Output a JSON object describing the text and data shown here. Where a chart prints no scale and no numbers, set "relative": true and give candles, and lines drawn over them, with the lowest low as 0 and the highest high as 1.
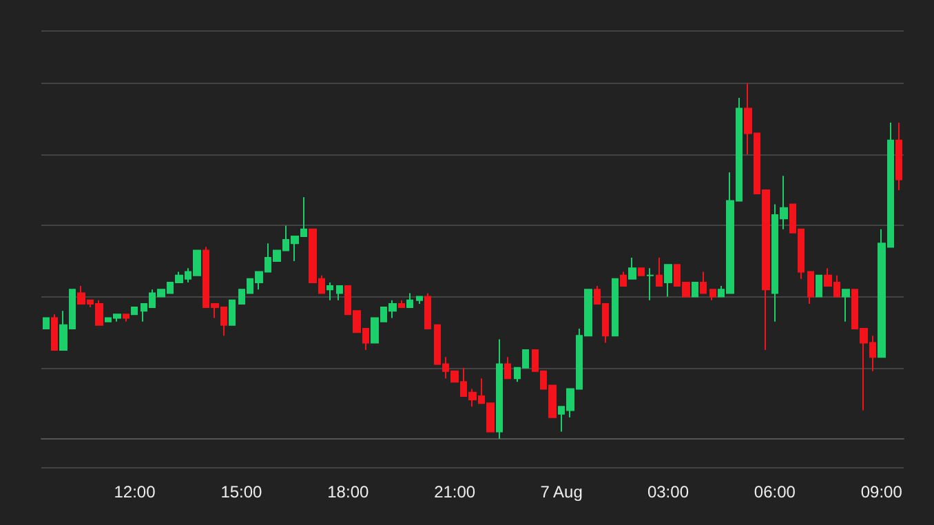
{
  "chart_data": {
    "type": "candlestick",
    "relative": true,
    "grid": "y",
    "categories": [
      null,
      null,
      null,
      null,
      null,
      null,
      null,
      null,
      null,
      null,
      "12:00",
      null,
      null,
      null,
      null,
      null,
      null,
      null,
      null,
      null,
      null,
      null,
      "15:00",
      null,
      null,
      null,
      null,
      null,
      null,
      null,
      null,
      null,
      null,
      null,
      "18:00",
      null,
      null,
      null,
      null,
      null,
      null,
      null,
      null,
      null,
      null,
      null,
      "21:00",
      null,
      null,
      null,
      null,
      null,
      null,
      null,
      null,
      null,
      null,
      null,
      "7 Aug",
      null,
      null,
      null,
      null,
      null,
      null,
      null,
      null,
      null,
      null,
      null,
      "03:00",
      null,
      null,
      null,
      null,
      null,
      null,
      null,
      null,
      null,
      null,
      null,
      "06:00",
      null,
      null,
      null,
      null,
      null,
      null,
      null,
      null,
      null,
      null,
      null,
      "09:00",
      null,
      null
    ],
    "series": [
      {
        "colors": [
          "#1ccf6b",
          "#f2141a",
          "#1ccf6b",
          "#1ccf6b",
          "#f2141a",
          "#f2141a",
          "#f2141a",
          "#1ccf6b",
          "#1ccf6b",
          "#f2141a",
          "#1ccf6b",
          "#1ccf6b",
          "#1ccf6b",
          "#1ccf6b",
          "#1ccf6b",
          "#1ccf6b",
          "#1ccf6b",
          "#1ccf6b",
          "#f2141a",
          "#f2141a",
          "#f2141a",
          "#1ccf6b",
          "#1ccf6b",
          "#1ccf6b",
          "#1ccf6b",
          "#1ccf6b",
          "#1ccf6b",
          "#1ccf6b",
          "#1ccf6b",
          "#1ccf6b",
          "#f2141a",
          "#f2141a",
          "#1ccf6b",
          "#1ccf6b",
          "#f2141a",
          "#f2141a",
          "#f2141a",
          "#1ccf6b",
          "#1ccf6b",
          "#1ccf6b",
          "#f2141a",
          "#1ccf6b",
          "#1ccf6b",
          "#f2141a",
          "#f2141a",
          "#f2141a",
          "#f2141a",
          "#f2141a",
          "#f2141a",
          "#f2141a",
          "#f2141a",
          "#1ccf6b",
          "#f2141a",
          "#1ccf6b",
          "#1ccf6b",
          "#f2141a",
          "#f2141a",
          "#f2141a",
          "#1ccf6b",
          "#1ccf6b",
          "#1ccf6b",
          "#1ccf6b",
          "#f2141a",
          "#f2141a",
          "#1ccf6b",
          "#f2141a",
          "#1ccf6b",
          "#f2141a",
          "#1ccf6b",
          "#f2141a",
          "#1ccf6b",
          "#f2141a",
          "#f2141a",
          "#1ccf6b",
          "#f2141a",
          "#f2141a",
          "#1ccf6b",
          "#1ccf6b",
          "#1ccf6b",
          "#f2141a",
          "#f2141a",
          "#f2141a",
          "#1ccf6b",
          "#1ccf6b",
          "#f2141a",
          "#f2141a",
          "#f2141a",
          "#1ccf6b",
          "#f2141a",
          "#f2141a",
          "#1ccf6b",
          "#f2141a",
          "#f2141a",
          "#f2141a",
          "#1ccf6b",
          "#1ccf6b",
          "#f2141a"
        ],
        "ohlc": [
          [
            0.31,
            0.34,
            0.31,
            0.34
          ],
          [
            0.34,
            0.35,
            0.25,
            0.25
          ],
          [
            0.25,
            0.36,
            0.25,
            0.32
          ],
          [
            0.31,
            0.42,
            0.31,
            0.42
          ],
          [
            0.41,
            0.43,
            0.38,
            0.38
          ],
          [
            0.39,
            0.39,
            0.37,
            0.38
          ],
          [
            0.38,
            0.39,
            0.32,
            0.32
          ],
          [
            0.33,
            0.34,
            0.33,
            0.34
          ],
          [
            0.34,
            0.35,
            0.33,
            0.35
          ],
          [
            0.35,
            0.35,
            0.33,
            0.34
          ],
          [
            0.35,
            0.37,
            0.35,
            0.37
          ],
          [
            0.36,
            0.38,
            0.33,
            0.38
          ],
          [
            0.37,
            0.42,
            0.37,
            0.41
          ],
          [
            0.4,
            0.42,
            0.4,
            0.42
          ],
          [
            0.41,
            0.44,
            0.41,
            0.44
          ],
          [
            0.44,
            0.47,
            0.44,
            0.46
          ],
          [
            0.45,
            0.48,
            0.44,
            0.47
          ],
          [
            0.46,
            0.53,
            0.46,
            0.53
          ],
          [
            0.53,
            0.54,
            0.37,
            0.37
          ],
          [
            0.38,
            0.38,
            0.34,
            0.37
          ],
          [
            0.37,
            0.37,
            0.29,
            0.32
          ],
          [
            0.32,
            0.39,
            0.32,
            0.39
          ],
          [
            0.38,
            0.42,
            0.38,
            0.42
          ],
          [
            0.41,
            0.45,
            0.41,
            0.45
          ],
          [
            0.44,
            0.47,
            0.42,
            0.47
          ],
          [
            0.47,
            0.55,
            0.47,
            0.51
          ],
          [
            0.5,
            0.53,
            0.5,
            0.53
          ],
          [
            0.53,
            0.6,
            0.53,
            0.56
          ],
          [
            0.55,
            0.57,
            0.5,
            0.57
          ],
          [
            0.57,
            0.68,
            0.57,
            0.59
          ],
          [
            0.59,
            0.59,
            0.44,
            0.44
          ],
          [
            0.45,
            0.46,
            0.41,
            0.41
          ],
          [
            0.42,
            0.44,
            0.39,
            0.43
          ],
          [
            0.41,
            0.43,
            0.39,
            0.43
          ],
          [
            0.43,
            0.43,
            0.35,
            0.35
          ],
          [
            0.36,
            0.36,
            0.3,
            0.3
          ],
          [
            0.31,
            0.31,
            0.25,
            0.27
          ],
          [
            0.27,
            0.34,
            0.27,
            0.34
          ],
          [
            0.33,
            0.37,
            0.33,
            0.37
          ],
          [
            0.36,
            0.39,
            0.34,
            0.38
          ],
          [
            0.38,
            0.39,
            0.37,
            0.37
          ],
          [
            0.37,
            0.41,
            0.37,
            0.39
          ],
          [
            0.39,
            0.4,
            0.38,
            0.4
          ],
          [
            0.4,
            0.41,
            0.31,
            0.31
          ],
          [
            0.32,
            0.32,
            0.21,
            0.21
          ],
          [
            0.21,
            0.23,
            0.17,
            0.19
          ],
          [
            0.19,
            0.19,
            0.16,
            0.16
          ],
          [
            0.16,
            0.2,
            0.12,
            0.12
          ],
          [
            0.13,
            0.14,
            0.09,
            0.11
          ],
          [
            0.12,
            0.17,
            0.1,
            0.1
          ],
          [
            0.1,
            0.1,
            0.02,
            0.02
          ],
          [
            0.02,
            0.28,
            0,
            0.21
          ],
          [
            0.21,
            0.23,
            0.17,
            0.17
          ],
          [
            0.17,
            0.2,
            0.16,
            0.2
          ],
          [
            0.2,
            0.25,
            0.2,
            0.25
          ],
          [
            0.25,
            0.25,
            0.19,
            0.19
          ],
          [
            0.19,
            0.19,
            0.14,
            0.14
          ],
          [
            0.15,
            0.15,
            0.06,
            0.06
          ],
          [
            0.07,
            0.09,
            0.02,
            0.09
          ],
          [
            0.08,
            0.14,
            0.06,
            0.14
          ],
          [
            0.14,
            0.31,
            0.14,
            0.29
          ],
          [
            0.29,
            0.42,
            0.29,
            0.42
          ],
          [
            0.42,
            0.43,
            0.38,
            0.38
          ],
          [
            0.38,
            0.38,
            0.27,
            0.29
          ],
          [
            0.29,
            0.45,
            0.29,
            0.45
          ],
          [
            0.46,
            0.47,
            0.43,
            0.43
          ],
          [
            0.45,
            0.51,
            0.45,
            0.48
          ],
          [
            0.48,
            0.48,
            0.46,
            0.46
          ],
          [
            0.46,
            0.48,
            0.39,
            0.46
          ],
          [
            0.46,
            0.51,
            0.43,
            0.43
          ],
          [
            0.44,
            0.49,
            0.4,
            0.49
          ],
          [
            0.49,
            0.49,
            0.43,
            0.43
          ],
          [
            0.44,
            0.44,
            0.4,
            0.4
          ],
          [
            0.4,
            0.44,
            0.4,
            0.44
          ],
          [
            0.44,
            0.47,
            0.41,
            0.41
          ],
          [
            0.42,
            0.42,
            0.39,
            0.4
          ],
          [
            0.4,
            0.43,
            0.4,
            0.42
          ],
          [
            0.41,
            0.75,
            0.41,
            0.67
          ],
          [
            0.67,
            0.96,
            0.67,
            0.93
          ],
          [
            0.93,
            1,
            0.8,
            0.86
          ],
          [
            0.86,
            0.86,
            0.69,
            0.69
          ],
          [
            0.7,
            0.7,
            0.25,
            0.42
          ],
          [
            0.41,
            0.66,
            0.33,
            0.63
          ],
          [
            0.62,
            0.74,
            0.59,
            0.65
          ],
          [
            0.66,
            0.66,
            0.58,
            0.58
          ],
          [
            0.59,
            0.59,
            0.45,
            0.47
          ],
          [
            0.47,
            0.47,
            0.38,
            0.4
          ],
          [
            0.4,
            0.46,
            0.4,
            0.46
          ],
          [
            0.46,
            0.48,
            0.43,
            0.43
          ],
          [
            0.44,
            0.46,
            0.4,
            0.4
          ],
          [
            0.4,
            0.42,
            0.33,
            0.42
          ],
          [
            0.42,
            0.42,
            0.31,
            0.31
          ],
          [
            0.31,
            0.31,
            0.08,
            0.27
          ],
          [
            0.27,
            0.29,
            0.19,
            0.23
          ],
          [
            0.23,
            0.59,
            0.23,
            0.55
          ],
          [
            0.54,
            0.89,
            0.54,
            0.84
          ],
          [
            0.84,
            0.89,
            0.7,
            0.73
          ]
        ]
      }
    ]
  }
}
